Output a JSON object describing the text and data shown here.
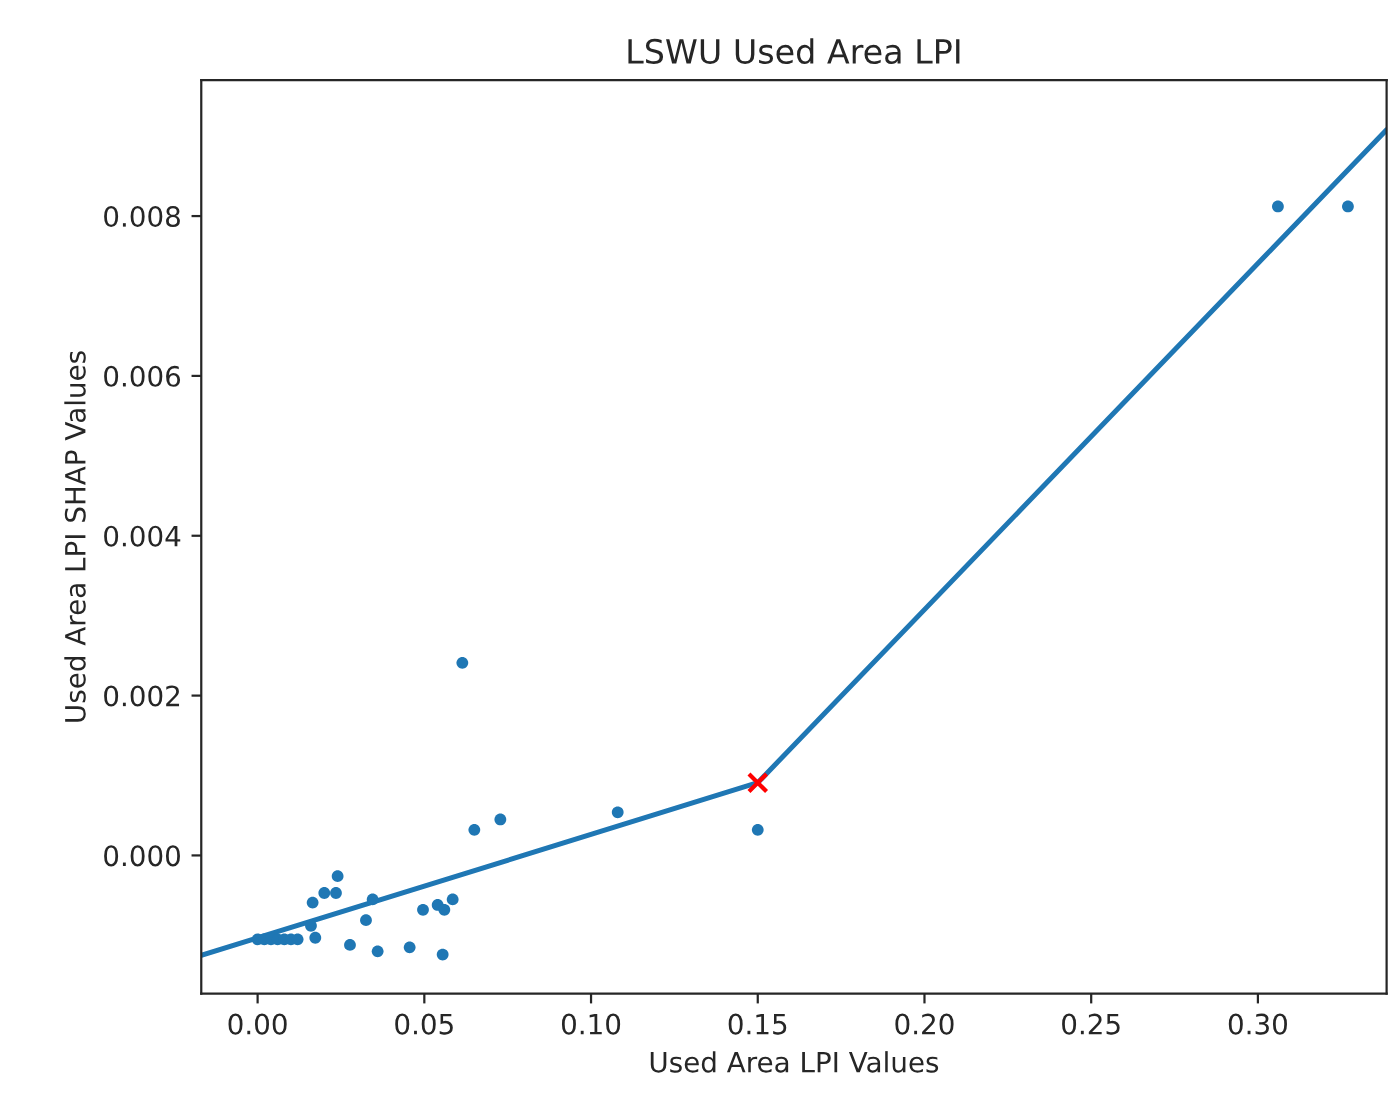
{
  "chart_data": {
    "type": "scatter",
    "title": "LSWU Used Area LPI",
    "xlabel": "Used Area LPI Values",
    "ylabel": "Used Area LPI SHAP Values",
    "xlim": [
      -0.0169,
      0.3386
    ],
    "ylim": [
      -0.00173,
      0.0097
    ],
    "xticks": [
      {
        "value": 0,
        "label": "0.00"
      },
      0.05,
      {
        "value": 0.1,
        "label": "0.10"
      },
      0.15,
      {
        "value": 0.2,
        "label": "0.20"
      },
      0.25,
      {
        "value": 0.3,
        "label": "0.30"
      }
    ],
    "yticks": [
      {
        "value": 0,
        "label": "0.000"
      },
      0.002,
      0.004,
      0.006,
      0.008
    ],
    "grid": false,
    "legend": false,
    "series": [
      {
        "marker": "circle",
        "color": "#1f77b4",
        "x": [
          0.0,
          0.002,
          0.004,
          0.006,
          0.008,
          0.01,
          0.012,
          0.0614,
          0.065,
          0.0728,
          0.108,
          0.15,
          0.024,
          0.02,
          0.0235,
          0.0165,
          0.0345,
          0.016,
          0.0173,
          0.0325,
          0.0277,
          0.036,
          0.0456,
          0.0496,
          0.054,
          0.056,
          0.0585,
          0.0555,
          0.306,
          0.327
        ],
        "values": [
          -0.00105,
          -0.00105,
          -0.00105,
          -0.00105,
          -0.00105,
          -0.00105,
          -0.00105,
          0.00241,
          0.00032,
          0.00045,
          0.00054,
          0.00032,
          -0.00026,
          -0.00047,
          -0.00047,
          -0.00059,
          -0.00055,
          -0.00088,
          -0.00103,
          -0.00081,
          -0.00112,
          -0.0012,
          -0.00115,
          -0.00068,
          -0.00062,
          -0.00068,
          -0.00055,
          -0.00124,
          0.00812,
          0.00812
        ]
      },
      {
        "type": "line",
        "marker": "none",
        "color": "#1f77b4",
        "x": [
          -0.0169,
          0.15,
          0.3386
        ],
        "values": [
          -0.00125,
          0.00091,
          0.00908
        ]
      },
      {
        "marker": "cross",
        "color": "#ff0000",
        "x": [
          0.15
        ],
        "values": [
          0.00091
        ]
      }
    ]
  }
}
